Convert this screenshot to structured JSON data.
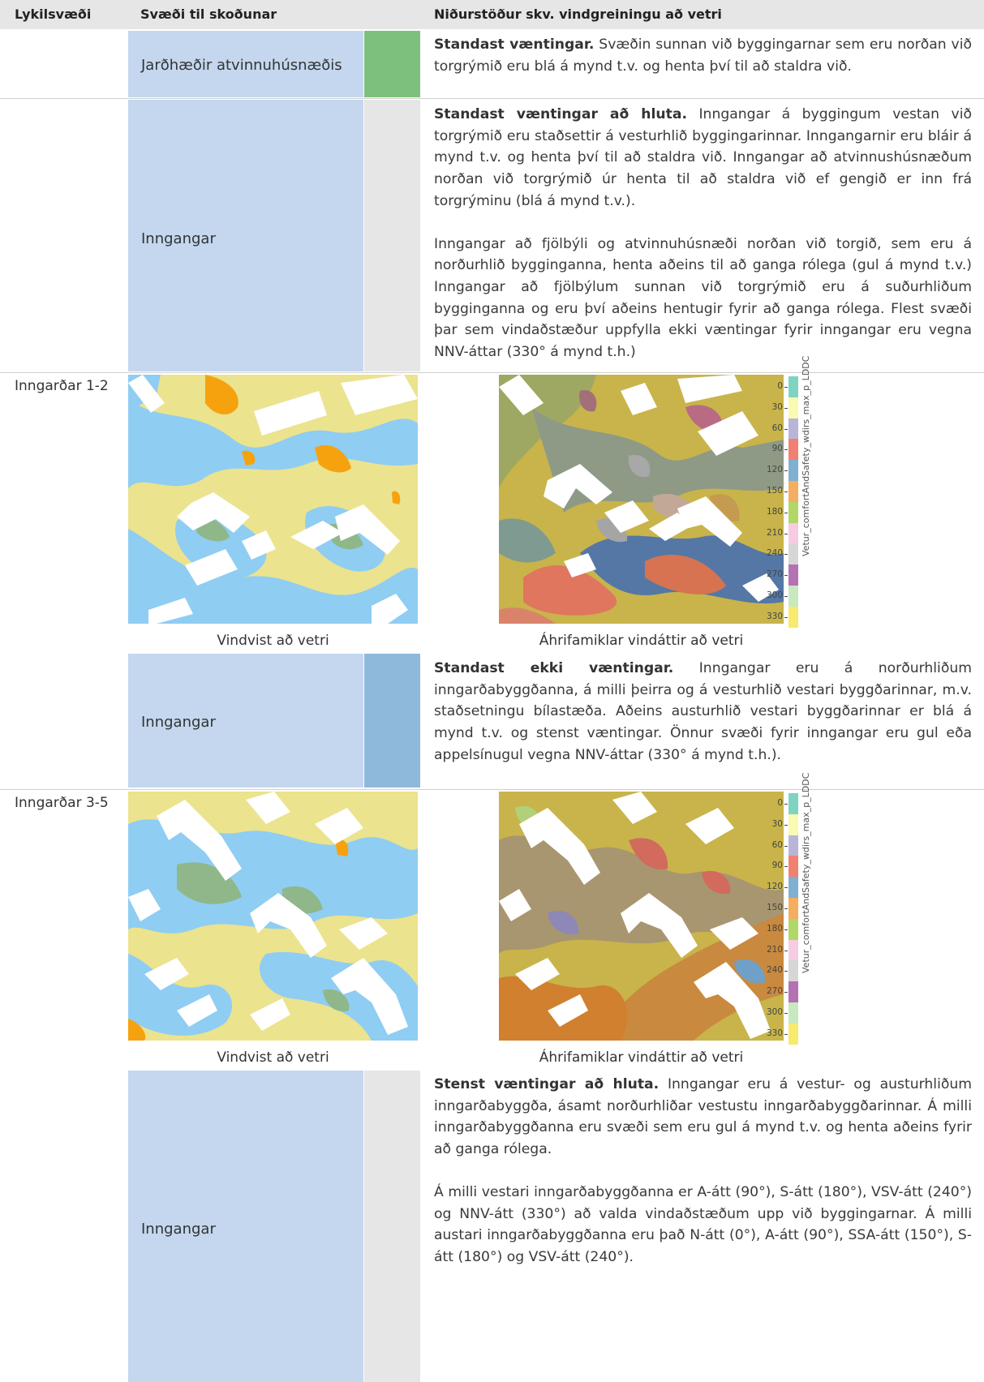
{
  "header": {
    "col1": "Lykilsvæði",
    "col2": "Svæði til skoðunar",
    "col3": "Niðurstöður skv. vindgreiningu að vetri"
  },
  "rows": [
    {
      "area": "Jarðhæðir atvinnuhúsnæðis",
      "status_color": "#7dc07d",
      "lead": "Standast væntingar.",
      "text": " Svæðin sunnan við byggingarnar sem eru norðan við torgrýmið eru blá á mynd t.v. og henta því til að staldra við."
    },
    {
      "area": "Inngangar",
      "status_color": "#e6e6e6",
      "lead": "Standast væntingar að hluta.",
      "text": " Inngangar á byggingum vestan við torgrýmið eru staðsettir á vesturhlið byggingarinnar. Inngangarnir eru bláir á mynd t.v. og henta því til að staldra við. Inngangar að atvinnushúsnæðum norðan við torgrýmið úr henta til að staldra við ef gengið er inn frá torgrýminu (blá á mynd t.v.).",
      "text2": "Inngangar að fjölbýli og atvinnuhúsnæði norðan við torgið, sem eru á norðurhlið bygginganna, henta aðeins til að ganga rólega (gul á mynd t.v.) Inngangar að fjölbýlum sunnan við torgrýmið eru á suðurhliðum bygginganna og eru því aðeins hentugir fyrir að ganga rólega. Flest svæði þar sem vindaðstæður uppfylla ekki væntingar fyrir inngangar eru vegna NNV-áttar (330° á mynd t.h.)"
    },
    {
      "area": "Inngangar",
      "status_color": "#8fb9da",
      "lead": "Standast ekki væntingar.",
      "text": " Inngangar eru á norðurhliðum inngarðabyggðanna, á milli þeirra og á vesturhlið vestari byggðarinnar, m.v. staðsetningu bílastæða. Aðeins austurhlið vestari byggðarinnar er blá á mynd t.v. og stenst væntingar. Önnur svæði fyrir inngangar eru gul eða appelsínugul vegna NNV-áttar (330° á mynd t.h.)."
    },
    {
      "area": "Inngangar",
      "status_color": "#e6e6e6",
      "lead": "Stenst væntingar að hluta.",
      "text": " Inngangar eru á vestur- og austurhliðum inngarðabyggða, ásamt norðurhliðar vestustu inngarðabyggðarinnar. Á milli inngarðabyggðanna eru svæði sem eru gul á mynd t.v. og henta aðeins fyrir að ganga rólega.",
      "text2": "Á milli vestari inngarðabyggðanna er A-átt (90°), S-átt (180°), VSV-átt (240°) og NNV-átt (330°) að valda vindaðstæðum upp við byggingarnar. Á milli austari inngarðabyggðanna eru það N-átt (0°), A-átt (90°), SSA-átt (150°), S-átt (180°) og VSV-átt (240°)."
    }
  ],
  "figures": [
    {
      "label": "Inngarðar 1-2",
      "caption_left": "Vindvist að vetri",
      "caption_right": "Áhrifamiklar vindáttir að vetri"
    },
    {
      "label": "Inngarðar 3-5",
      "caption_left": "Vindvist að vetri",
      "caption_right": "Áhrifamiklar vindáttir að vetri"
    }
  ],
  "legend": {
    "title": "Vetur_comfortAndSafety_wdirs_max_p_LDDC",
    "ticks": [
      "0",
      "30",
      "60",
      "90",
      "120",
      "150",
      "180",
      "210",
      "240",
      "270",
      "300",
      "330"
    ],
    "colors": [
      "#7fd3c3",
      "#fafab0",
      "#b9b5d8",
      "#f08070",
      "#7fb0d2",
      "#f5ad60",
      "#b1d766",
      "#f7cbe2",
      "#d6d6d6",
      "#b472b4",
      "#c8e8c0",
      "#f8ea6c"
    ]
  },
  "palette": {
    "comfort_yellow": "#ebe38e",
    "comfort_blue": "#8fcdf3",
    "comfort_green": "#8fb78a",
    "comfort_orange": "#f6a20f"
  }
}
